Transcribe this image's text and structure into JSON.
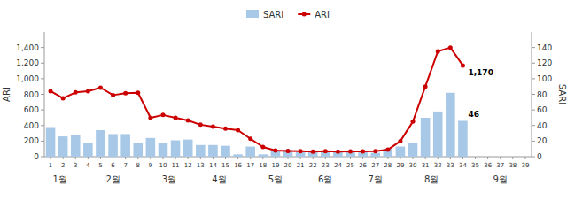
{
  "chart_data": {
    "type": "bar",
    "x": [
      1,
      2,
      3,
      4,
      5,
      6,
      7,
      8,
      9,
      10,
      11,
      12,
      13,
      14,
      15,
      16,
      17,
      18,
      19,
      20,
      21,
      22,
      23,
      24,
      25,
      26,
      27,
      28,
      29,
      30,
      31,
      32,
      33,
      34,
      35,
      36,
      37,
      38,
      39
    ],
    "xlim": [
      0.5,
      39.5
    ],
    "xticks": [
      1,
      2,
      3,
      4,
      5,
      6,
      7,
      8,
      9,
      10,
      11,
      12,
      13,
      14,
      15,
      16,
      17,
      18,
      19,
      20,
      21,
      22,
      23,
      24,
      25,
      26,
      27,
      28,
      29,
      30,
      31,
      32,
      33,
      34,
      35,
      36,
      37,
      38,
      39
    ],
    "x2ticks": [
      {
        "value": 1.75,
        "label": "1월"
      },
      {
        "value": 6.0,
        "label": "2월"
      },
      {
        "value": 10.5,
        "label": "3월"
      },
      {
        "value": 14.5,
        "label": "4월"
      },
      {
        "value": 19.0,
        "label": "5월"
      },
      {
        "value": 23.0,
        "label": "6월"
      },
      {
        "value": 27.0,
        "label": "7월"
      },
      {
        "value": 31.5,
        "label": "8월"
      },
      {
        "value": 37.0,
        "label": "9월"
      }
    ],
    "ylabel": "ARI",
    "y2label": "SARI",
    "ylim": [
      0,
      1600
    ],
    "yticks": [
      0,
      200,
      400,
      600,
      800,
      {
        "value": 1000,
        "label": "1,000"
      },
      {
        "value": 1200,
        "label": "1,200"
      },
      {
        "value": 1400,
        "label": "1,400"
      }
    ],
    "y2lim": [
      0,
      160
    ],
    "y2ticks": [
      0,
      20,
      40,
      60,
      80,
      100,
      120,
      140
    ],
    "series": [
      {
        "name": "SARI",
        "type": "bar",
        "axis": "y2",
        "color": "#a8c8e8",
        "values": [
          38,
          26,
          28,
          18,
          34,
          29,
          29,
          18,
          24,
          17,
          21,
          22,
          15,
          15,
          14,
          3,
          13,
          3,
          8,
          7,
          6,
          6,
          6,
          6,
          6,
          6,
          5,
          10,
          13,
          18,
          50,
          58,
          82,
          46,
          null,
          null,
          null,
          null,
          null
        ]
      },
      {
        "name": "ARI",
        "type": "line",
        "color": "#CC0000",
        "marker": "circle",
        "values": [
          840,
          750,
          825,
          840,
          885,
          790,
          815,
          820,
          500,
          535,
          500,
          465,
          410,
          385,
          360,
          340,
          230,
          125,
          80,
          75,
          70,
          65,
          70,
          65,
          68,
          68,
          70,
          90,
          200,
          450,
          900,
          1350,
          1400,
          1170,
          null,
          null,
          null,
          null,
          null
        ]
      }
    ],
    "annotations": [
      {
        "x": 34,
        "y": 1170,
        "label": "1,170"
      },
      {
        "x": 34,
        "y": 46,
        "label": "46",
        "axis": "y2"
      }
    ],
    "legend": "top"
  }
}
